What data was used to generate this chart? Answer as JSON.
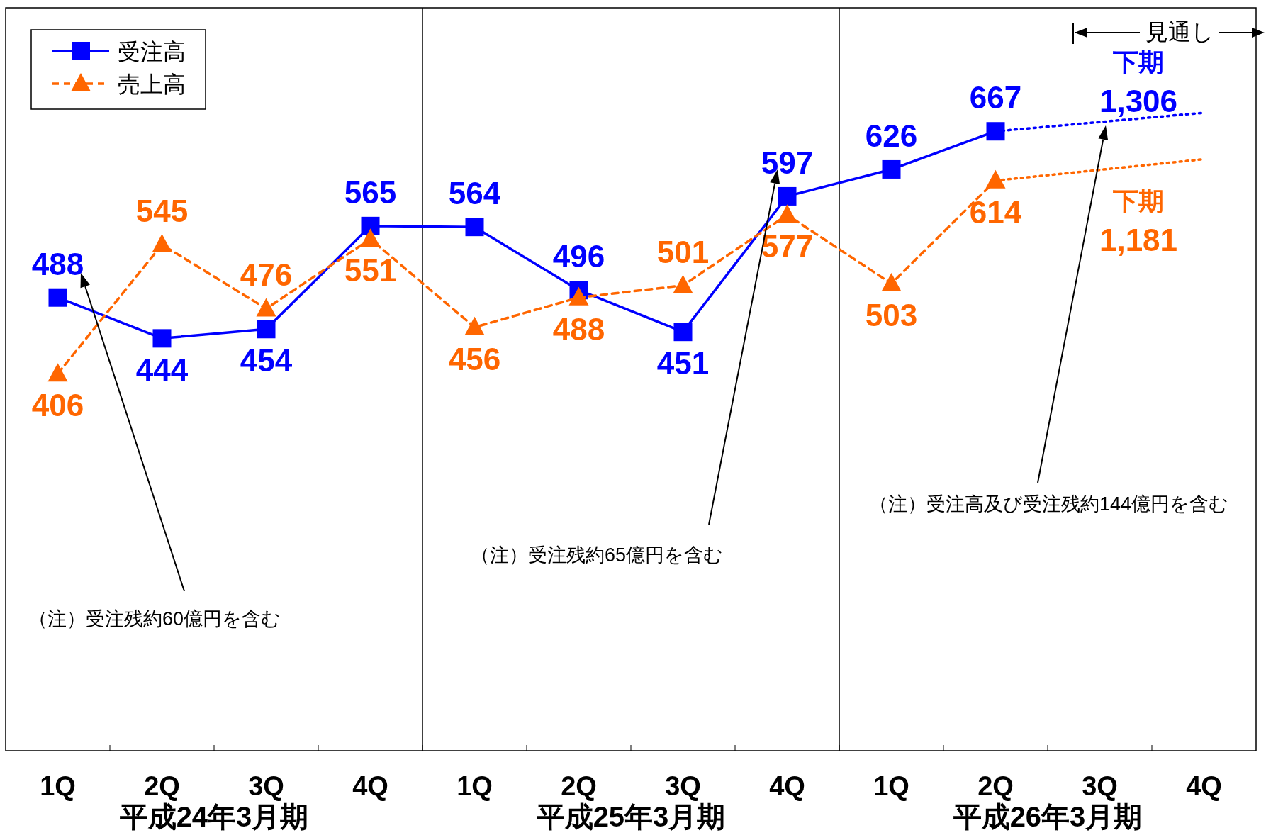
{
  "chart_data": {
    "type": "line",
    "categories": [
      "1Q",
      "2Q",
      "3Q",
      "4Q",
      "1Q",
      "2Q",
      "3Q",
      "4Q",
      "1Q",
      "2Q",
      "3Q",
      "4Q"
    ],
    "ylim": [
      0,
      800
    ],
    "legend": "top left",
    "series": [
      {
        "name": "受注高",
        "color": "#0000ff",
        "marker": "square",
        "line_style": "solid",
        "values": [
          488,
          444,
          454,
          565,
          564,
          496,
          451,
          597,
          626,
          667,
          null,
          null
        ],
        "value_labels": [
          "488",
          "444",
          "454",
          "565",
          "564",
          "496",
          "451",
          "597",
          "626",
          "667",
          null,
          null
        ]
      },
      {
        "name": "売上高",
        "color": "#ff6600",
        "marker": "triangle",
        "line_style": "dashed",
        "values": [
          406,
          545,
          476,
          551,
          456,
          488,
          501,
          577,
          503,
          614,
          null,
          null
        ],
        "value_labels": [
          "406",
          "545",
          "476",
          "551",
          "456",
          "488",
          "501",
          "577",
          "503",
          "614",
          null,
          null
        ]
      },
      {
        "color": "#0000ff",
        "marker": "none",
        "line_style": "dotted",
        "values": [
          null,
          null,
          null,
          null,
          null,
          null,
          null,
          null,
          null,
          667,
          null,
          687
        ]
      },
      {
        "color": "#ff6600",
        "marker": "none",
        "line_style": "dotted",
        "values": [
          null,
          null,
          null,
          null,
          null,
          null,
          null,
          null,
          null,
          614,
          null,
          637
        ]
      }
    ],
    "annotations": [
      "平成24年3月期",
      "平成25年3月期",
      "平成26年3月期",
      "見通し",
      "下期",
      "1,306",
      "下期",
      "1,181",
      "（注）受注残約60億円を含む",
      "（注）受注残約65億円を含む",
      "（注）受注高及び受注残約144億円を含む"
    ]
  }
}
